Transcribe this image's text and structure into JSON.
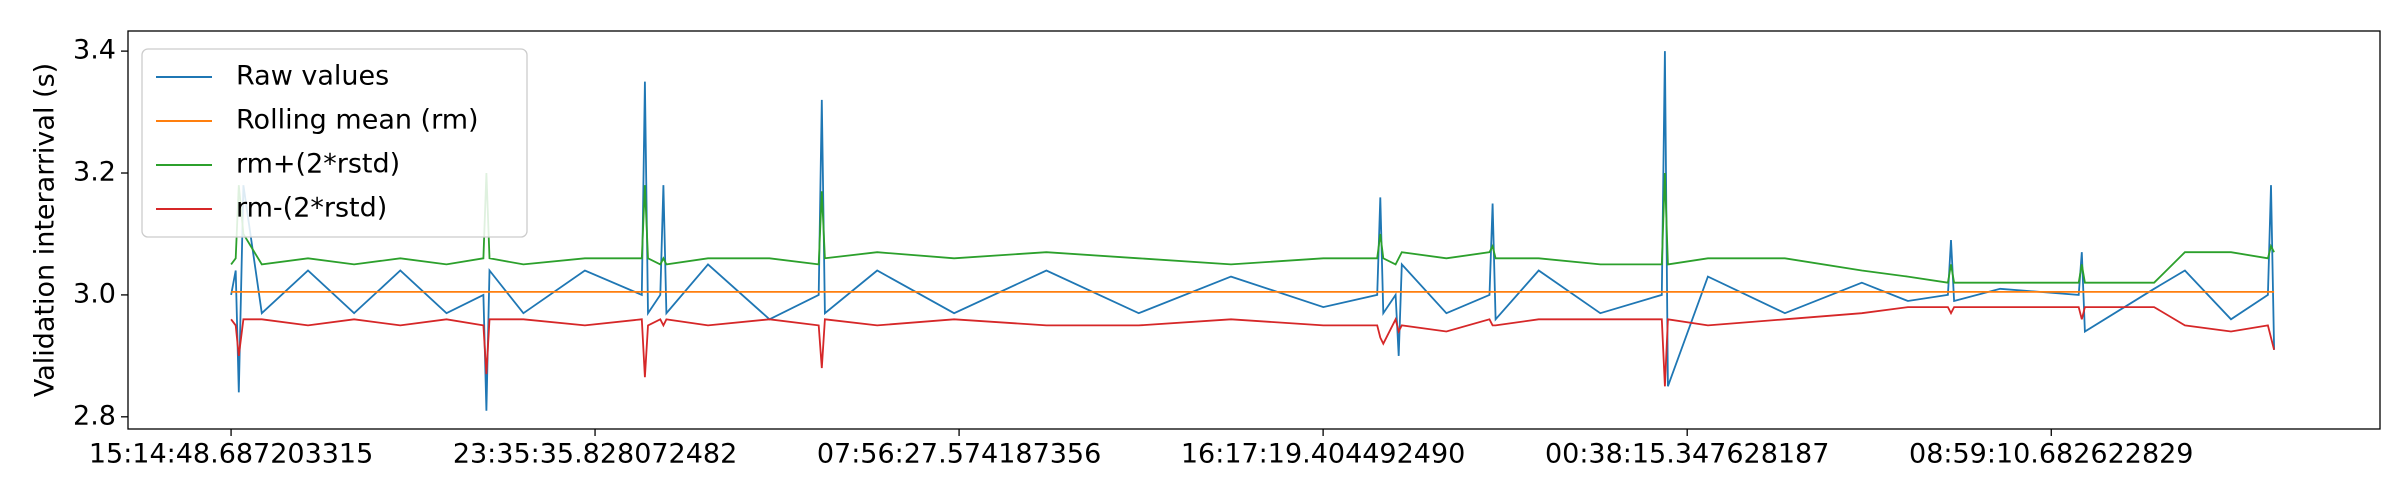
{
  "chart_data": {
    "type": "line",
    "y_label": "Validation interarrival (s)",
    "x": [
      0,
      381,
      635,
      1016,
      2540,
      6350,
      10160,
      13970,
      17780,
      20828,
      21082,
      21336,
      24130,
      29210,
      33909,
      34163,
      34417,
      35433,
      35687,
      35941,
      39370,
      44450,
      48514,
      48768,
      49022,
      53340,
      59690,
      67310,
      74930,
      82550,
      90170,
      94615,
      94869,
      95123,
      96139,
      96393,
      96647,
      100330,
      103886,
      104140,
      104394,
      107950,
      113030,
      118110,
      118364,
      118618,
      121920,
      128270,
      134620,
      138430,
      141732,
      141986,
      142240,
      146050,
      152527,
      152781,
      153035,
      158750,
      161290,
      165100,
      168148,
      168402,
      168656
    ],
    "series": [
      {
        "name": "Raw values",
        "color": "#1f77b4",
        "values": [
          3.0,
          3.04,
          2.84,
          3.18,
          2.97,
          3.04,
          2.97,
          3.04,
          2.97,
          3.0,
          2.81,
          3.04,
          2.97,
          3.04,
          3.0,
          3.35,
          2.97,
          3.0,
          3.18,
          2.97,
          3.05,
          2.96,
          3.0,
          3.32,
          2.97,
          3.04,
          2.97,
          3.04,
          2.97,
          3.03,
          2.98,
          3.0,
          3.16,
          2.97,
          3.0,
          2.9,
          3.05,
          2.97,
          3.0,
          3.15,
          2.96,
          3.04,
          2.97,
          3.0,
          3.4,
          2.85,
          3.03,
          2.97,
          3.02,
          2.99,
          3.0,
          3.09,
          2.99,
          3.01,
          3.0,
          3.07,
          2.94,
          3.01,
          3.04,
          2.96,
          3.0,
          3.18,
          2.91
        ]
      },
      {
        "name": "Rolling mean (rm)",
        "color": "#ff7f0e",
        "values": [
          3.005,
          3.005,
          3.005,
          3.005,
          3.005,
          3.005,
          3.005,
          3.005,
          3.005,
          3.005,
          3.005,
          3.005,
          3.005,
          3.005,
          3.005,
          3.005,
          3.005,
          3.005,
          3.005,
          3.005,
          3.005,
          3.005,
          3.005,
          3.005,
          3.005,
          3.005,
          3.005,
          3.005,
          3.005,
          3.005,
          3.005,
          3.005,
          3.005,
          3.005,
          3.005,
          3.005,
          3.005,
          3.005,
          3.005,
          3.005,
          3.005,
          3.005,
          3.005,
          3.005,
          3.005,
          3.005,
          3.005,
          3.005,
          3.005,
          3.005,
          3.005,
          3.005,
          3.005,
          3.005,
          3.005,
          3.005,
          3.005,
          3.005,
          3.005,
          3.005,
          3.005,
          3.005,
          3.005
        ]
      },
      {
        "name": "rm+(2*rstd)",
        "color": "#2ca02c",
        "values": [
          3.05,
          3.06,
          3.18,
          3.1,
          3.05,
          3.06,
          3.05,
          3.06,
          3.05,
          3.06,
          3.2,
          3.06,
          3.05,
          3.06,
          3.06,
          3.18,
          3.06,
          3.05,
          3.06,
          3.05,
          3.06,
          3.06,
          3.05,
          3.17,
          3.06,
          3.07,
          3.06,
          3.07,
          3.06,
          3.05,
          3.06,
          3.06,
          3.1,
          3.06,
          3.05,
          3.06,
          3.07,
          3.06,
          3.07,
          3.08,
          3.06,
          3.06,
          3.05,
          3.05,
          3.2,
          3.05,
          3.06,
          3.06,
          3.04,
          3.03,
          3.02,
          3.05,
          3.02,
          3.02,
          3.02,
          3.05,
          3.02,
          3.02,
          3.07,
          3.07,
          3.06,
          3.08,
          3.07
        ]
      },
      {
        "name": "rm-(2*rstd)",
        "color": "#d62728",
        "values": [
          2.96,
          2.95,
          2.9,
          2.96,
          2.96,
          2.95,
          2.96,
          2.95,
          2.96,
          2.95,
          2.87,
          2.96,
          2.96,
          2.95,
          2.96,
          2.865,
          2.95,
          2.96,
          2.95,
          2.96,
          2.95,
          2.96,
          2.95,
          2.88,
          2.96,
          2.95,
          2.96,
          2.95,
          2.95,
          2.96,
          2.95,
          2.95,
          2.93,
          2.92,
          2.96,
          2.94,
          2.95,
          2.94,
          2.96,
          2.95,
          2.95,
          2.96,
          2.96,
          2.96,
          2.85,
          2.96,
          2.95,
          2.96,
          2.97,
          2.98,
          2.98,
          2.97,
          2.98,
          2.98,
          2.98,
          2.96,
          2.98,
          2.98,
          2.95,
          2.94,
          2.95,
          2.93,
          2.91
        ]
      }
    ],
    "xlim": [
      -8509,
      177400
    ],
    "xticks": [
      {
        "value": 0,
        "label": "15:14:48.687203315"
      },
      {
        "value": 30047,
        "label": "23:35:35.828072482"
      },
      {
        "value": 60099,
        "label": "07:56:27.574187356"
      },
      {
        "value": 90151,
        "label": "16:17:19.404492490"
      },
      {
        "value": 120207,
        "label": "00:38:15.347628187"
      },
      {
        "value": 150262,
        "label": "08:59:10.682622829"
      }
    ],
    "ylim": [
      2.78,
      3.433
    ],
    "yticks": [
      2.8,
      {
        "value": 3,
        "label": "3.0"
      },
      3.2,
      3.4
    ],
    "legend": "upper-left"
  }
}
